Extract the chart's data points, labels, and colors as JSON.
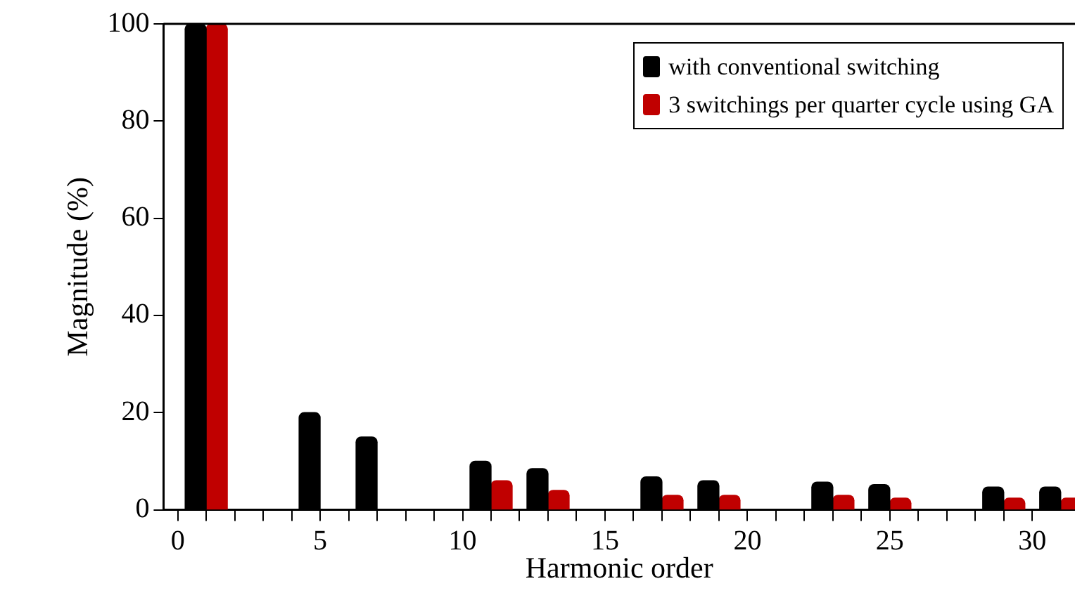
{
  "chart_data": {
    "type": "bar",
    "xlabel": "Harmonic order",
    "ylabel": "Magnitude (%)",
    "x": [
      1,
      5,
      7,
      11,
      13,
      17,
      19,
      23,
      25,
      29,
      31
    ],
    "series": [
      {
        "name": "with conventional switching",
        "color": "#000000",
        "values": [
          100,
          20,
          15,
          10,
          8.5,
          6.8,
          6,
          5.7,
          5.2,
          4.7,
          4.7
        ]
      },
      {
        "name": "3 switchings per quarter cycle using GA",
        "color": "#c00000",
        "values": [
          100,
          null,
          null,
          6,
          4,
          3,
          3,
          3,
          2.4,
          2.4,
          2.4
        ]
      }
    ],
    "xlim": [
      -0.5,
      31.5
    ],
    "xticks": [
      0,
      {
        "value": 1,
        "label": null
      },
      {
        "value": 2,
        "label": null
      },
      {
        "value": 3,
        "label": null
      },
      {
        "value": 4,
        "label": null
      },
      5,
      {
        "value": 6,
        "label": null
      },
      {
        "value": 7,
        "label": null
      },
      {
        "value": 8,
        "label": null
      },
      {
        "value": 9,
        "label": null
      },
      10,
      {
        "value": 11,
        "label": null
      },
      {
        "value": 12,
        "label": null
      },
      {
        "value": 13,
        "label": null
      },
      {
        "value": 14,
        "label": null
      },
      15,
      {
        "value": 16,
        "label": null
      },
      {
        "value": 17,
        "label": null
      },
      {
        "value": 18,
        "label": null
      },
      {
        "value": 19,
        "label": null
      },
      20,
      {
        "value": 21,
        "label": null
      },
      {
        "value": 22,
        "label": null
      },
      {
        "value": 23,
        "label": null
      },
      {
        "value": 24,
        "label": null
      },
      25,
      {
        "value": 26,
        "label": null
      },
      {
        "value": 27,
        "label": null
      },
      {
        "value": 28,
        "label": null
      },
      {
        "value": 29,
        "label": null
      },
      30
    ],
    "ylim": [
      0,
      100
    ],
    "yticks": [
      0,
      20,
      40,
      60,
      80,
      100
    ],
    "grid": false,
    "legend": "top right"
  }
}
